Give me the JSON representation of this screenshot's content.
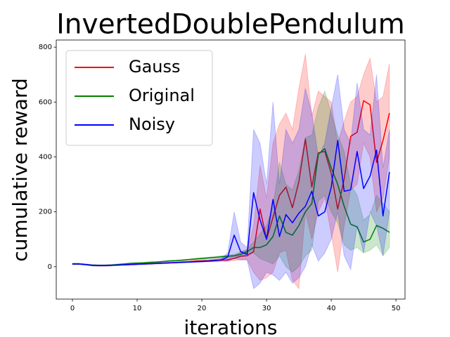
{
  "chart_data": {
    "type": "line",
    "title": "InvertedDoublePendulum",
    "x_label": "iterations",
    "y_label": "cumulative reward",
    "x": [
      0,
      1,
      2,
      3,
      4,
      5,
      6,
      7,
      8,
      9,
      10,
      11,
      12,
      13,
      14,
      15,
      16,
      17,
      18,
      19,
      20,
      21,
      22,
      23,
      24,
      25,
      26,
      27,
      28,
      29,
      30,
      31,
      32,
      33,
      34,
      35,
      36,
      37,
      38,
      39,
      40,
      41,
      42,
      43,
      44,
      45,
      46,
      47,
      48,
      49
    ],
    "xlim": [
      -2.5,
      51.4
    ],
    "ylim": [
      -118,
      826
    ],
    "xticks": [
      0,
      10,
      20,
      30,
      40,
      50
    ],
    "yticks": [
      0,
      200,
      400,
      600,
      800
    ],
    "grid": false,
    "legend": "upper left",
    "series": [
      {
        "name": "Gauss",
        "color": "#ff0000",
        "values": [
          10,
          10,
          8,
          5,
          4,
          4,
          5,
          6,
          7,
          8,
          9,
          10,
          11,
          12,
          13,
          14,
          15,
          17,
          18,
          20,
          21,
          22,
          24,
          24,
          25,
          30,
          38,
          40,
          55,
          210,
          100,
          180,
          260,
          290,
          215,
          310,
          465,
          290,
          415,
          420,
          340,
          210,
          320,
          475,
          490,
          605,
          590,
          380,
          460,
          560
        ],
        "upper": [
          12,
          12,
          10,
          7,
          6,
          6,
          7,
          8,
          9,
          10,
          11,
          12,
          13,
          14,
          15,
          17,
          18,
          20,
          21,
          23,
          25,
          26,
          28,
          29,
          30,
          40,
          55,
          60,
          150,
          370,
          250,
          450,
          520,
          560,
          500,
          650,
          775,
          550,
          640,
          620,
          600,
          450,
          530,
          600,
          620,
          700,
          760,
          600,
          620,
          740
        ],
        "lower": [
          8,
          8,
          6,
          3,
          2,
          2,
          3,
          4,
          5,
          6,
          7,
          8,
          9,
          10,
          11,
          12,
          13,
          14,
          15,
          17,
          18,
          19,
          20,
          20,
          20,
          22,
          25,
          25,
          -20,
          -50,
          -40,
          -20,
          50,
          60,
          -50,
          -80,
          200,
          100,
          200,
          250,
          120,
          -20,
          150,
          280,
          300,
          450,
          400,
          200,
          250,
          400
        ]
      },
      {
        "name": "Original",
        "color": "#008000",
        "values": [
          10,
          10,
          8,
          6,
          5,
          5,
          6,
          8,
          10,
          12,
          13,
          14,
          16,
          17,
          19,
          21,
          22,
          24,
          26,
          28,
          30,
          32,
          34,
          36,
          38,
          40,
          45,
          55,
          70,
          70,
          80,
          110,
          185,
          125,
          115,
          150,
          200,
          230,
          410,
          430,
          360,
          300,
          220,
          155,
          145,
          90,
          100,
          150,
          140,
          125
        ],
        "upper": [
          12,
          12,
          10,
          8,
          7,
          7,
          8,
          10,
          12,
          14,
          15,
          16,
          18,
          19,
          21,
          23,
          24,
          26,
          28,
          31,
          33,
          35,
          37,
          40,
          42,
          45,
          52,
          65,
          90,
          120,
          150,
          220,
          380,
          300,
          280,
          350,
          470,
          480,
          580,
          640,
          560,
          480,
          420,
          300,
          260,
          170,
          190,
          260,
          230,
          200
        ],
        "lower": [
          8,
          8,
          6,
          4,
          3,
          3,
          4,
          6,
          8,
          10,
          11,
          12,
          14,
          15,
          17,
          19,
          20,
          22,
          24,
          25,
          27,
          29,
          31,
          32,
          34,
          35,
          38,
          45,
          50,
          30,
          20,
          10,
          40,
          0,
          -20,
          0,
          40,
          60,
          240,
          260,
          200,
          160,
          80,
          60,
          70,
          50,
          60,
          80,
          40,
          70
        ]
      },
      {
        "name": "Noisy",
        "color": "#0000ff",
        "values": [
          10,
          10,
          8,
          5,
          4,
          4,
          5,
          6,
          7,
          8,
          9,
          10,
          11,
          12,
          13,
          14,
          15,
          16,
          17,
          18,
          19,
          20,
          22,
          25,
          35,
          115,
          55,
          45,
          270,
          170,
          100,
          245,
          110,
          190,
          160,
          195,
          220,
          275,
          185,
          200,
          290,
          460,
          275,
          280,
          420,
          285,
          330,
          425,
          185,
          345
        ],
        "upper": [
          12,
          12,
          10,
          7,
          6,
          6,
          7,
          8,
          9,
          10,
          11,
          12,
          13,
          14,
          15,
          16,
          17,
          18,
          19,
          20,
          22,
          23,
          26,
          30,
          50,
          200,
          90,
          70,
          500,
          450,
          300,
          600,
          300,
          500,
          450,
          500,
          650,
          560,
          400,
          450,
          580,
          700,
          500,
          450,
          670,
          500,
          480,
          700,
          360,
          500
        ],
        "lower": [
          8,
          8,
          6,
          3,
          2,
          2,
          3,
          4,
          5,
          6,
          7,
          8,
          9,
          10,
          11,
          12,
          13,
          14,
          15,
          16,
          17,
          18,
          18,
          20,
          20,
          30,
          25,
          25,
          -80,
          -60,
          -20,
          -30,
          -50,
          -20,
          -60,
          -40,
          0,
          80,
          20,
          50,
          100,
          200,
          40,
          -10,
          150,
          50,
          200,
          150,
          40,
          200
        ]
      }
    ]
  }
}
